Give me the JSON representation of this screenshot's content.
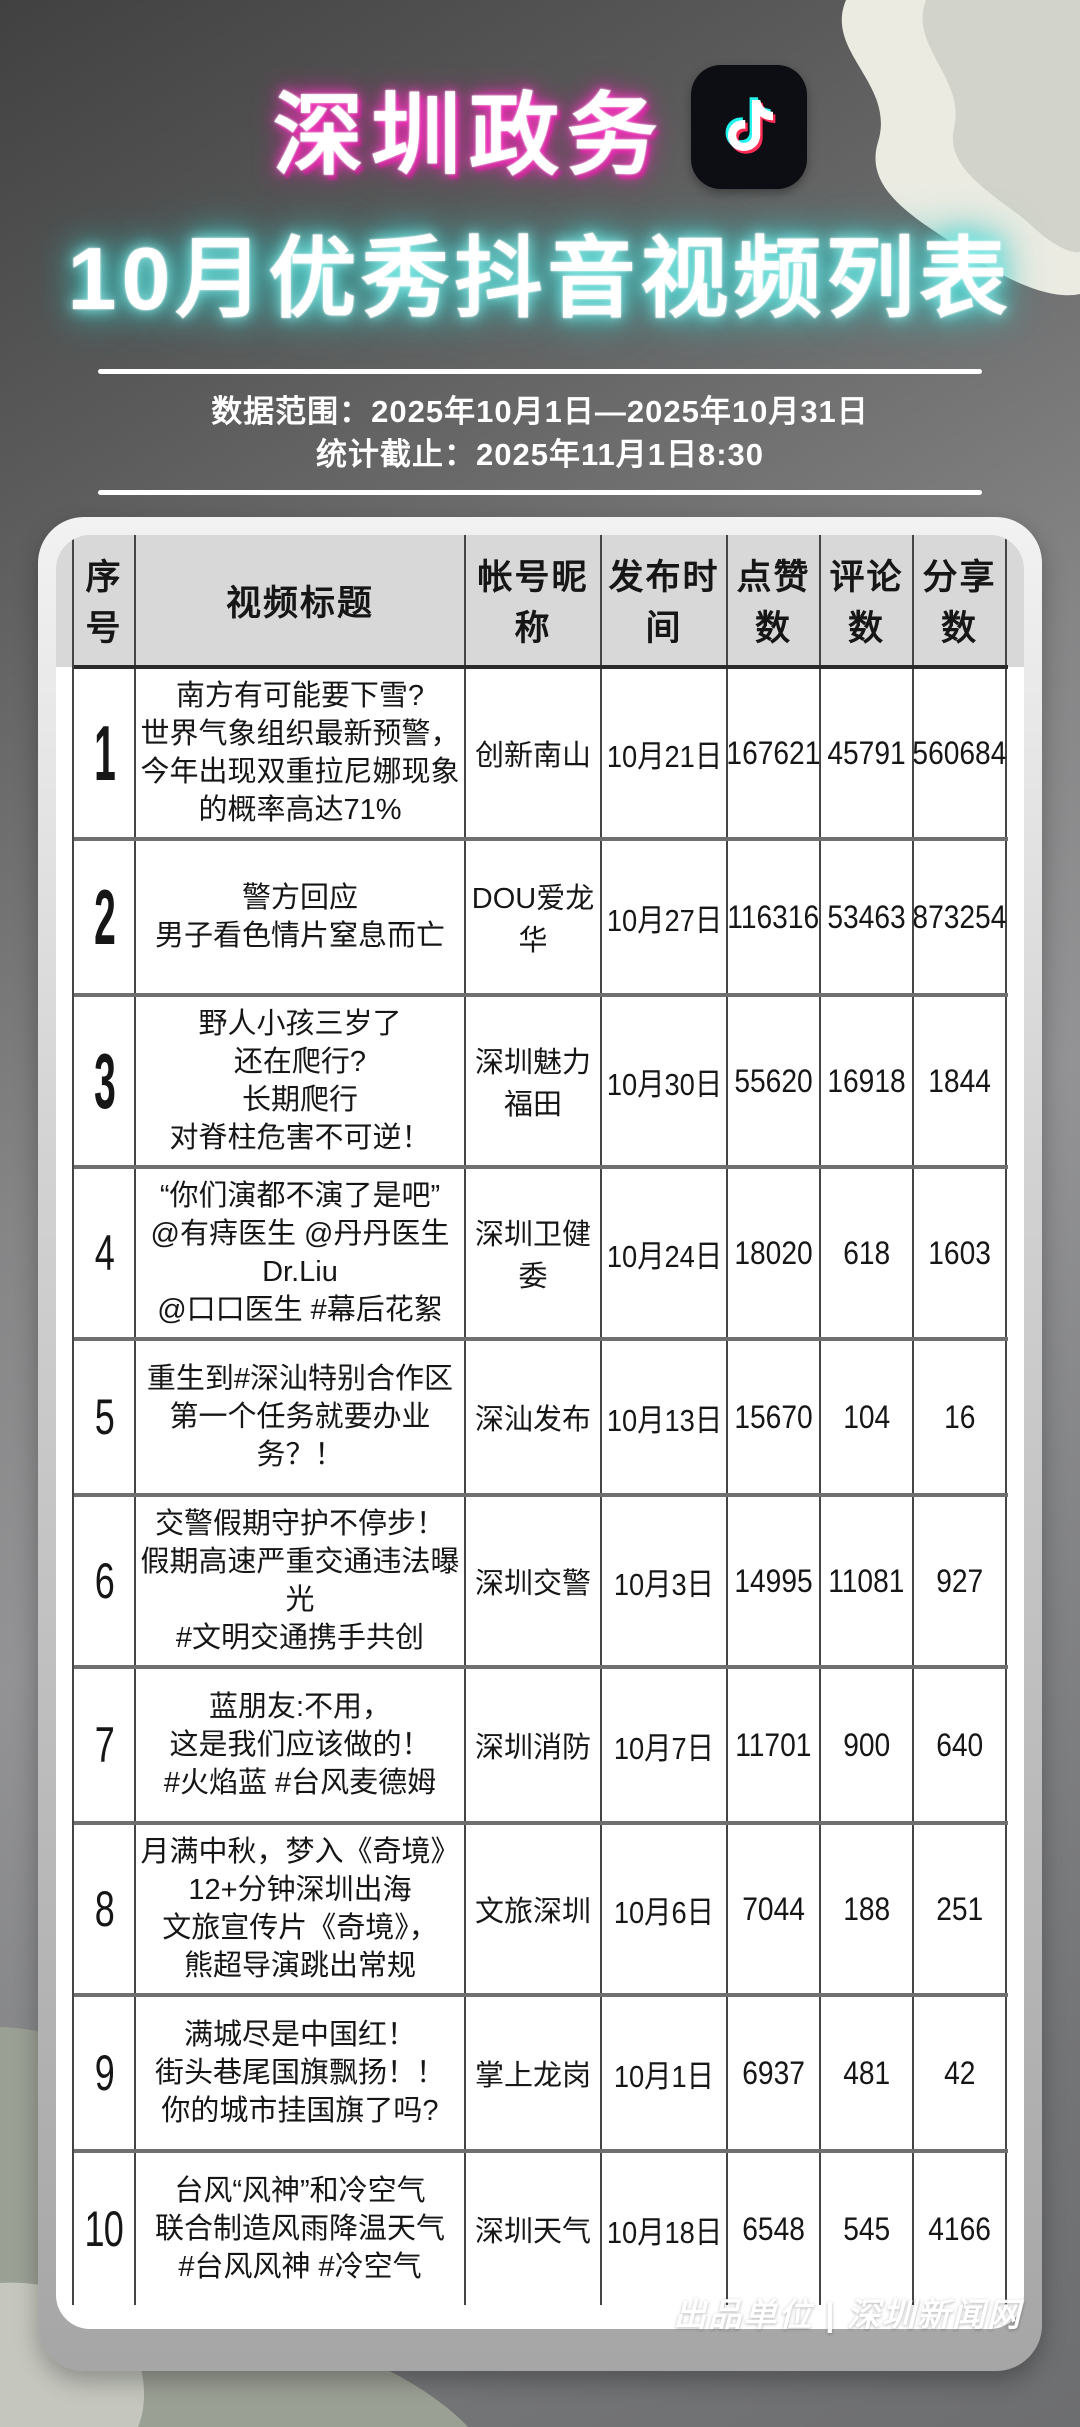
{
  "header": {
    "title_line1": "深圳政务",
    "title_line2": "10月优秀抖音视频列表",
    "date_range": "数据范围：2025年10月1日—2025年10月31日",
    "stats_cutoff": "统计截止：2025年11月1日8:30"
  },
  "icons": {
    "douyin_icon": "douyin-note-icon"
  },
  "colors": {
    "title1_glow": "#e316a4",
    "title2_glow": "#3ed2cf",
    "douyin_cyan": "#25f4ee",
    "douyin_pink": "#fe2c55",
    "douyin_bg": "#0d0d14",
    "header_band": "#d8d8d8",
    "card_silver": "#b3b3b3"
  },
  "table": {
    "columns": [
      "序号",
      "视频标题",
      "帐号昵称",
      "发布时间",
      "点赞数",
      "评论数",
      "分享数"
    ],
    "rows": [
      {
        "no": "1",
        "title_lines": [
          "南方有可能要下雪?",
          "世界气象组织最新预警，",
          "今年出现双重拉尼娜现象",
          "的概率高达71%"
        ],
        "account": "创新南山",
        "date": "10月21日",
        "likes": "167621",
        "comments": "45791",
        "shares": "560684"
      },
      {
        "no": "2",
        "title_lines": [
          "警方回应",
          "男子看色情片窒息而亡"
        ],
        "account": "DOU爱龙华",
        "date": "10月27日",
        "likes": "116316",
        "comments": "53463",
        "shares": "873254"
      },
      {
        "no": "3",
        "title_lines": [
          "野人小孩三岁了",
          "还在爬行?",
          "长期爬行",
          "对脊柱危害不可逆！"
        ],
        "account": "深圳魅力福田",
        "date": "10月30日",
        "likes": "55620",
        "comments": "16918",
        "shares": "1844"
      },
      {
        "no": "4",
        "title_lines": [
          "“你们演都不演了是吧”",
          "@有痔医生 @丹丹医生Dr.Liu",
          "@口口医生 #幕后花絮"
        ],
        "account": "深圳卫健委",
        "date": "10月24日",
        "likes": "18020",
        "comments": "618",
        "shares": "1603"
      },
      {
        "no": "5",
        "title_lines": [
          "重生到#深汕特别合作区",
          "第一个任务就要办业务？！"
        ],
        "account": "深汕发布",
        "date": "10月13日",
        "likes": "15670",
        "comments": "104",
        "shares": "16"
      },
      {
        "no": "6",
        "title_lines": [
          "交警假期守护不停步！",
          "假期高速严重交通违法曝光",
          "#文明交通携手共创"
        ],
        "account": "深圳交警",
        "date": "10月3日",
        "likes": "14995",
        "comments": "11081",
        "shares": "927"
      },
      {
        "no": "7",
        "title_lines": [
          "蓝朋友:不用，",
          "这是我们应该做的！",
          "#火焰蓝 #台风麦德姆"
        ],
        "account": "深圳消防",
        "date": "10月7日",
        "likes": "11701",
        "comments": "900",
        "shares": "640"
      },
      {
        "no": "8",
        "title_lines": [
          "月满中秋，梦入《奇境》",
          "12+分钟深圳出海",
          "文旅宣传片《奇境》，",
          "熊超导演跳出常规"
        ],
        "account": "文旅深圳",
        "date": "10月6日",
        "likes": "7044",
        "comments": "188",
        "shares": "251"
      },
      {
        "no": "9",
        "title_lines": [
          "满城尽是中国红！",
          "街头巷尾国旗飘扬！！",
          "你的城市挂国旗了吗?"
        ],
        "account": "掌上龙岗",
        "date": "10月1日",
        "likes": "6937",
        "comments": "481",
        "shares": "42"
      },
      {
        "no": "10",
        "title_lines": [
          "台风“风神”和冷空气",
          "联合制造风雨降温天气",
          "#台风风神 #冷空气"
        ],
        "account": "深圳天气",
        "date": "10月18日",
        "likes": "6548",
        "comments": "545",
        "shares": "4166"
      }
    ]
  },
  "footer": {
    "credit": "出品单位 | 深圳新闻网"
  }
}
